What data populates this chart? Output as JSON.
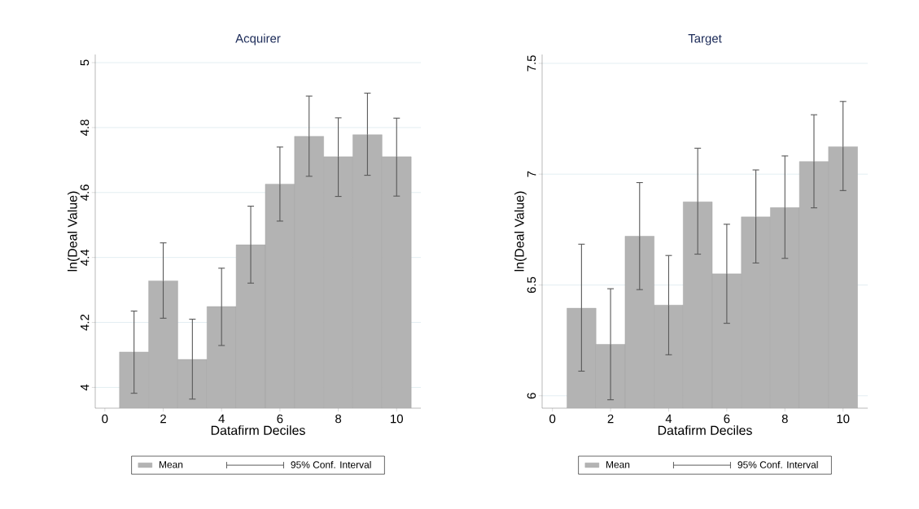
{
  "chart_data": [
    {
      "type": "bar",
      "title": "Acquirer",
      "xlabel": "Datafirm Deciles",
      "ylabel": "ln(Deal Value)",
      "x": [
        1,
        2,
        3,
        4,
        5,
        6,
        7,
        8,
        9,
        10
      ],
      "xlim": [
        -0.33,
        10.83
      ],
      "xticks": [
        0,
        2,
        4,
        6,
        8,
        10
      ],
      "ylim": [
        3.936,
        5.025
      ],
      "yticks": [
        4,
        4.2,
        4.4,
        4.6,
        4.8,
        5
      ],
      "grid": "y",
      "legend": "bottom",
      "series": [
        {
          "name": "Mean",
          "color": "#b3b3b3",
          "values": [
            4.109,
            4.328,
            4.086,
            4.249,
            4.439,
            4.626,
            4.773,
            4.71,
            4.778,
            4.71
          ],
          "errors": [
            [
              3.982,
              4.235
            ],
            [
              4.213,
              4.445
            ],
            [
              3.964,
              4.21
            ],
            [
              4.129,
              4.367
            ],
            [
              4.321,
              4.558
            ],
            [
              4.512,
              4.74
            ],
            [
              4.65,
              4.897
            ],
            [
              4.588,
              4.83
            ],
            [
              4.653,
              4.906
            ],
            [
              4.589,
              4.829
            ]
          ]
        }
      ],
      "annotations": [
        "95% Conf. Interval"
      ]
    },
    {
      "type": "bar",
      "title": "Target",
      "xlabel": "Datafirm Deciles",
      "ylabel": "ln(Deal Value)",
      "x": [
        1,
        2,
        3,
        4,
        5,
        6,
        7,
        8,
        9,
        10
      ],
      "xlim": [
        -0.355,
        10.85
      ],
      "xticks": [
        0,
        2,
        4,
        6,
        8,
        10
      ],
      "ylim": [
        5.944,
        7.54
      ],
      "yticks": [
        6,
        6.5,
        7,
        7.5
      ],
      "grid": "y",
      "legend": "bottom",
      "series": [
        {
          "name": "Mean",
          "color": "#b3b3b3",
          "values": [
            6.395,
            6.232,
            6.72,
            6.409,
            6.875,
            6.55,
            6.807,
            6.849,
            7.057,
            7.124
          ],
          "errors": [
            [
              6.111,
              6.684
            ],
            [
              5.982,
              6.483
            ],
            [
              6.479,
              6.962
            ],
            [
              6.185,
              6.633
            ],
            [
              6.639,
              7.117
            ],
            [
              6.327,
              6.774
            ],
            [
              6.599,
              7.019
            ],
            [
              6.62,
              7.082
            ],
            [
              6.848,
              7.268
            ],
            [
              6.926,
              7.328
            ]
          ]
        }
      ],
      "annotations": [
        "95% Conf. Interval"
      ]
    }
  ]
}
